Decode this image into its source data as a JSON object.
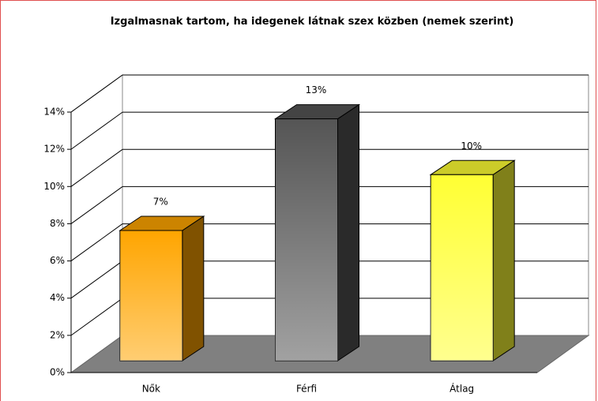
{
  "chart_data": {
    "type": "bar3d",
    "title": "Izgalmasnak tartom, ha idegenek látnak szex közben (nemek szerint)",
    "categories": [
      "Nők",
      "Férfi",
      "Átlag"
    ],
    "values": [
      7,
      13,
      10
    ],
    "value_labels": [
      "7%",
      "13%",
      "10%"
    ],
    "colors": [
      "#ffa500",
      "#555555",
      "#ffff33"
    ],
    "ylim": [
      0,
      14
    ],
    "yticks": [
      {
        "value": 0,
        "label": "0%"
      },
      {
        "value": 2,
        "label": "2%"
      },
      {
        "value": 4,
        "label": "4%"
      },
      {
        "value": 6,
        "label": "6%"
      },
      {
        "value": 8,
        "label": "8%"
      },
      {
        "value": 10,
        "label": "10%"
      },
      {
        "value": 12,
        "label": "12%"
      },
      {
        "value": 14,
        "label": "14%"
      }
    ],
    "grid": true
  }
}
